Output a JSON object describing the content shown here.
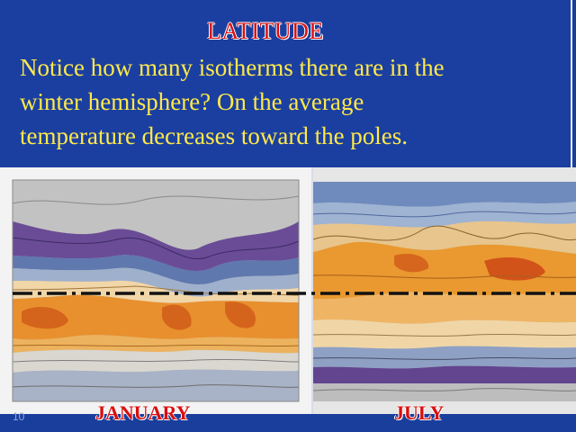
{
  "slide": {
    "title": "LATITUDE",
    "body_lines": [
      "Notice how many isotherms there are in the",
      "winter hemisphere? On the average",
      "temperature decreases toward the poles."
    ],
    "slide_number": "10"
  },
  "maps": {
    "january": {
      "label": "JANUARY"
    },
    "july": {
      "label": "JULY"
    }
  },
  "colors": {
    "background": "#1a3e9c",
    "title": "#d90f0f",
    "body_text": "#ffe94a",
    "equator_dash": "#111111",
    "band_cold": "#5c3f8c",
    "band_cool": "#6e88b8",
    "band_mild": "#e8b670",
    "band_warm": "#e57f22"
  }
}
